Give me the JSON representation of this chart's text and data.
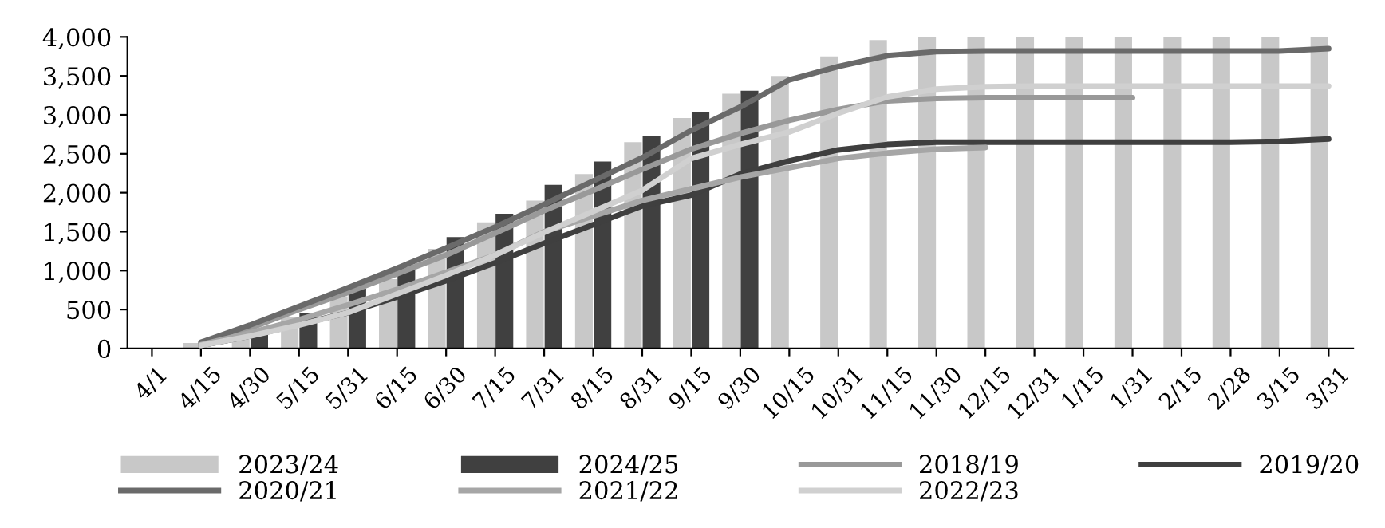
{
  "chart_data": {
    "type": "bar",
    "categories": [
      "4/1",
      "4/15",
      "4/30",
      "5/15",
      "5/31",
      "6/15",
      "6/30",
      "7/15",
      "7/31",
      "8/15",
      "8/31",
      "9/15",
      "9/30",
      "10/15",
      "10/31",
      "11/15",
      "11/30",
      "12/15",
      "12/31",
      "1/15",
      "1/31",
      "2/15",
      "2/28",
      "3/15",
      "3/31"
    ],
    "series": [
      {
        "name": "2023/24",
        "color": "#c8c8c8",
        "values": [
          null,
          70,
          120,
          400,
          670,
          890,
          1280,
          1620,
          1900,
          2240,
          2650,
          2960,
          3270,
          3500,
          3750,
          3960,
          4000,
          4000,
          4000,
          4000,
          4000,
          4000,
          4000,
          4000,
          4000
        ]
      },
      {
        "name": "2024/25",
        "color": "#404040",
        "values": [
          null,
          null,
          190,
          460,
          770,
          1040,
          1430,
          1730,
          2100,
          2400,
          2730,
          3040,
          3310,
          null,
          null,
          null,
          null,
          null,
          null,
          null,
          null,
          null,
          null,
          null,
          null
        ]
      },
      {
        "name": "2018/19",
        "type": "line",
        "color": "#999999",
        "values": [
          null,
          60,
          260,
          500,
          720,
          960,
          1200,
          1480,
          1770,
          2030,
          2300,
          2560,
          2760,
          2930,
          3070,
          3180,
          3210,
          3220,
          3220,
          3220,
          3220,
          null,
          null,
          null,
          null
        ]
      },
      {
        "name": "2019/20",
        "type": "line",
        "color": "#3f3f3f",
        "values": [
          null,
          40,
          160,
          310,
          460,
          660,
          870,
          1100,
          1350,
          1590,
          1830,
          1970,
          2240,
          2410,
          2550,
          2620,
          2650,
          2650,
          2650,
          2650,
          2650,
          2650,
          2650,
          2660,
          2690
        ]
      },
      {
        "name": "2020/21",
        "type": "line",
        "color": "#6a6a6a",
        "values": [
          null,
          80,
          300,
          540,
          780,
          1030,
          1290,
          1560,
          1850,
          2150,
          2450,
          2800,
          3100,
          3450,
          3620,
          3760,
          3810,
          3820,
          3820,
          3820,
          3820,
          3820,
          3820,
          3820,
          3850
        ]
      },
      {
        "name": "2021/22",
        "type": "line",
        "color": "#a6a6a6",
        "values": [
          null,
          50,
          200,
          370,
          560,
          760,
          980,
          1200,
          1500,
          1700,
          1900,
          2050,
          2200,
          2320,
          2440,
          2510,
          2560,
          2580,
          null,
          null,
          null,
          null,
          null,
          null,
          null
        ]
      },
      {
        "name": "2022/23",
        "type": "line",
        "color": "#d0d0d0",
        "values": [
          null,
          40,
          160,
          300,
          460,
          700,
          940,
          1200,
          1490,
          1760,
          2030,
          2440,
          2620,
          2780,
          3020,
          3230,
          3330,
          3360,
          3370,
          3370,
          3370,
          3370,
          3370,
          3370,
          3370
        ]
      }
    ],
    "ylim": [
      0,
      4000
    ],
    "yticks": [
      {
        "value": 0,
        "label": "0"
      },
      {
        "value": 500,
        "label": "500"
      },
      {
        "value": 1000,
        "label": "1,000"
      },
      {
        "value": 1500,
        "label": "1,500"
      },
      {
        "value": 2000,
        "label": "2,000"
      },
      {
        "value": 2500,
        "label": "2,500"
      },
      {
        "value": 3000,
        "label": "3,000"
      },
      {
        "value": 3500,
        "label": "3,500"
      },
      {
        "value": 4000,
        "label": "4,000"
      }
    ],
    "grid": false,
    "legend": "bottom"
  }
}
